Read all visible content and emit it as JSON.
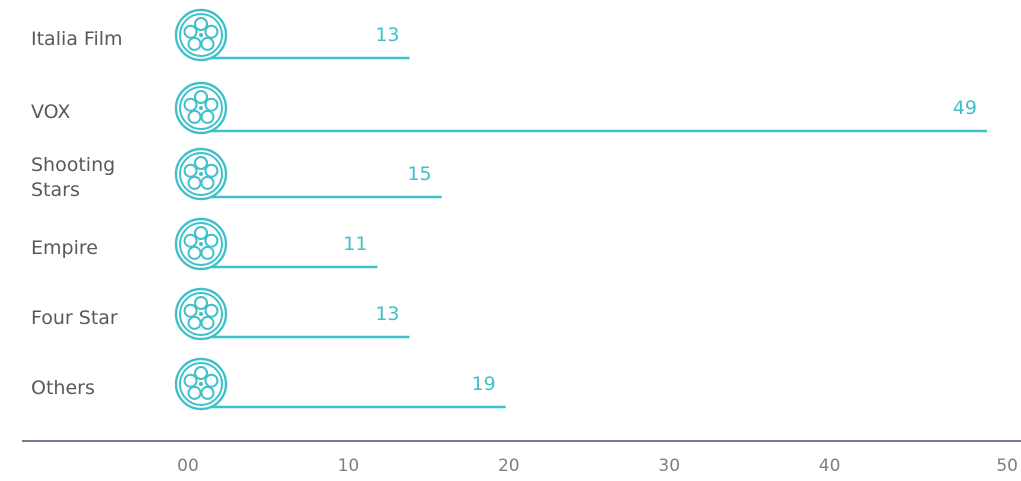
{
  "chart_data": {
    "type": "bar",
    "orientation": "horizontal",
    "categories": [
      "Italia Film",
      "VOX",
      "Shooting Stars",
      "Empire",
      "Four Star",
      "Others"
    ],
    "values": [
      13,
      49,
      15,
      11,
      13,
      19
    ],
    "xlim": [
      0,
      50
    ],
    "x_ticks": [
      "00",
      "10",
      "20",
      "30",
      "40",
      "50"
    ],
    "title": "",
    "xlabel": "",
    "ylabel": "",
    "grid": false,
    "legend": "none",
    "colors": {
      "bar": "#3ec1c8",
      "value_label": "#3ec1c8",
      "axis": "#4a4a6a",
      "category_text": "#595959",
      "tick_text": "#7f7f7f"
    },
    "marker_icon": "film-reel-icon"
  }
}
